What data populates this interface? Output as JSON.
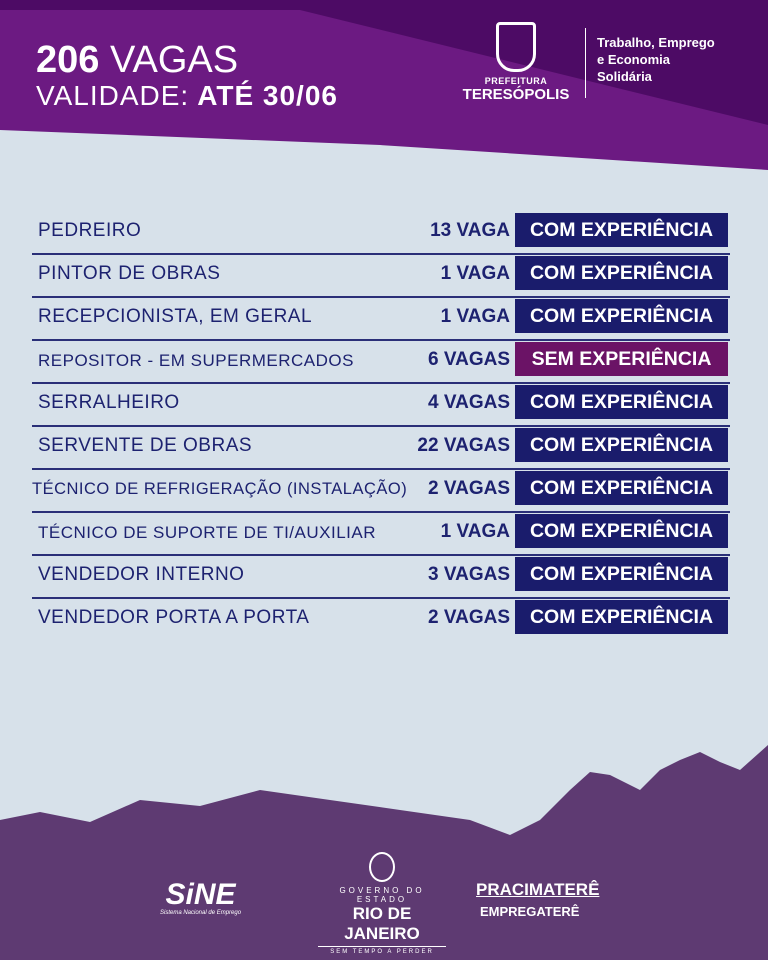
{
  "header": {
    "count": "206",
    "count_label": "VAGAS",
    "validity_label": "VALIDADE:",
    "validity_value": "ATÉ 30/06"
  },
  "logo": {
    "prefeitura": "PREFEITURA",
    "city": "TERESÓPOLIS"
  },
  "department": {
    "line1": "Trabalho, Emprego",
    "line2": "e Economia",
    "line3": "Solidária"
  },
  "jobs": [
    {
      "title": "PEDREIRO",
      "count": "13 VAGA",
      "requirement": "COM EXPERIÊNCIA"
    },
    {
      "title": "PINTOR DE OBRAS",
      "count": "1 VAGA",
      "requirement": "COM EXPERIÊNCIA"
    },
    {
      "title": "RECEPCIONISTA, EM GERAL",
      "count": "1 VAGA",
      "requirement": "COM EXPERIÊNCIA"
    },
    {
      "title": "REPOSITOR - EM SUPERMERCADOS",
      "count": "6 VAGAS",
      "requirement": "SEM EXPERIÊNCIA"
    },
    {
      "title": "SERRALHEIRO",
      "count": "4 VAGAS",
      "requirement": "COM EXPERIÊNCIA"
    },
    {
      "title": "SERVENTE DE OBRAS",
      "count": "22 VAGAS",
      "requirement": "COM EXPERIÊNCIA"
    },
    {
      "title": "TÉCNICO DE REFRIGERAÇÃO (INSTALAÇÃO)",
      "count": "2 VAGAS",
      "requirement": "COM EXPERIÊNCIA"
    },
    {
      "title": "TÉCNICO DE SUPORTE DE TI/AUXILIAR",
      "count": "1 VAGA",
      "requirement": "COM EXPERIÊNCIA"
    },
    {
      "title": "VENDEDOR INTERNO",
      "count": "3 VAGAS",
      "requirement": "COM EXPERIÊNCIA"
    },
    {
      "title": "VENDEDOR PORTA A PORTA",
      "count": "2 VAGAS",
      "requirement": "COM EXPERIÊNCIA"
    }
  ],
  "footer": {
    "sine": "SiNE",
    "sine_sub": "Sistema Nacional de Emprego",
    "gov_line1": "GOVERNO DO ESTADO",
    "gov_line2": "RIO DE JANEIRO",
    "gov_line3": "SEM TEMPO A PERDER",
    "pracima": "PRACIMATERÊ",
    "empregatere": "EMPREGATERÊ"
  },
  "colors": {
    "purple": "#6c1a82",
    "dark_purple": "#4a0a62",
    "navy": "#1a1c6c",
    "magenta": "#6b1366",
    "mountain": "#5e3a72",
    "background": "#d7e1ea"
  }
}
